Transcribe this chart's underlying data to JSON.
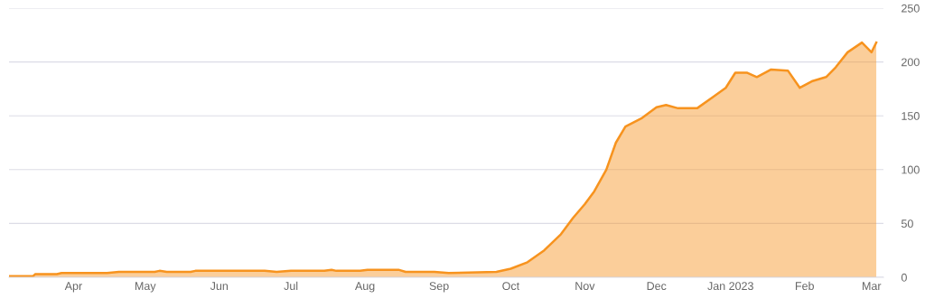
{
  "chart_data": {
    "type": "area",
    "x": [
      "2022-03-05",
      "2022-03-15",
      "2022-03-16",
      "2022-03-25",
      "2022-03-27",
      "2022-04-15",
      "2022-04-20",
      "2022-05-05",
      "2022-05-07",
      "2022-05-10",
      "2022-05-20",
      "2022-05-22",
      "2022-06-01",
      "2022-06-20",
      "2022-06-25",
      "2022-07-01",
      "2022-07-15",
      "2022-07-18",
      "2022-07-20",
      "2022-07-30",
      "2022-08-02",
      "2022-08-15",
      "2022-08-18",
      "2022-08-30",
      "2022-09-05",
      "2022-09-25",
      "2022-10-01",
      "2022-10-08",
      "2022-10-15",
      "2022-10-22",
      "2022-10-27",
      "2022-11-01",
      "2022-11-05",
      "2022-11-10",
      "2022-11-14",
      "2022-11-18",
      "2022-11-25",
      "2022-12-01",
      "2022-12-05",
      "2022-12-10",
      "2022-12-18",
      "2022-12-25",
      "2022-12-30",
      "2023-01-03",
      "2023-01-08",
      "2023-01-12",
      "2023-01-18",
      "2023-01-25",
      "2023-01-30",
      "2023-02-04",
      "2023-02-10",
      "2023-02-14",
      "2023-02-19",
      "2023-02-25",
      "2023-03-01",
      "2023-03-03"
    ],
    "series": [
      {
        "color": "#f7931e",
        "values": [
          1,
          1,
          3,
          3,
          4,
          4,
          5,
          5,
          6,
          5,
          5,
          6,
          6,
          6,
          5,
          6,
          6,
          7,
          6,
          6,
          7,
          7,
          5,
          5,
          4,
          5,
          8,
          14,
          25,
          40,
          55,
          68,
          80,
          100,
          125,
          140,
          148,
          158,
          160,
          157,
          157,
          168,
          176,
          190,
          190,
          186,
          193,
          192,
          176,
          182,
          186,
          195,
          209,
          218,
          209,
          218
        ]
      }
    ],
    "xlim": [
      "2022-03-05",
      "2023-03-06"
    ],
    "xticks": [
      {
        "value": "2022-04-01",
        "label": "Apr"
      },
      {
        "value": "2022-05-01",
        "label": "May"
      },
      {
        "value": "2022-06-01",
        "label": "Jun"
      },
      {
        "value": "2022-07-01",
        "label": "Jul"
      },
      {
        "value": "2022-08-01",
        "label": "Aug"
      },
      {
        "value": "2022-09-01",
        "label": "Sep"
      },
      {
        "value": "2022-10-01",
        "label": "Oct"
      },
      {
        "value": "2022-11-01",
        "label": "Nov"
      },
      {
        "value": "2022-12-01",
        "label": "Dec"
      },
      {
        "value": "2023-01-01",
        "label": "Jan 2023"
      },
      {
        "value": "2023-02-01",
        "label": "Feb"
      },
      {
        "value": "2023-03-01",
        "label": "Mar"
      }
    ],
    "ylim": [
      0,
      250
    ],
    "yticks": [
      0,
      50,
      100,
      150,
      200,
      250
    ],
    "grid": "y"
  }
}
